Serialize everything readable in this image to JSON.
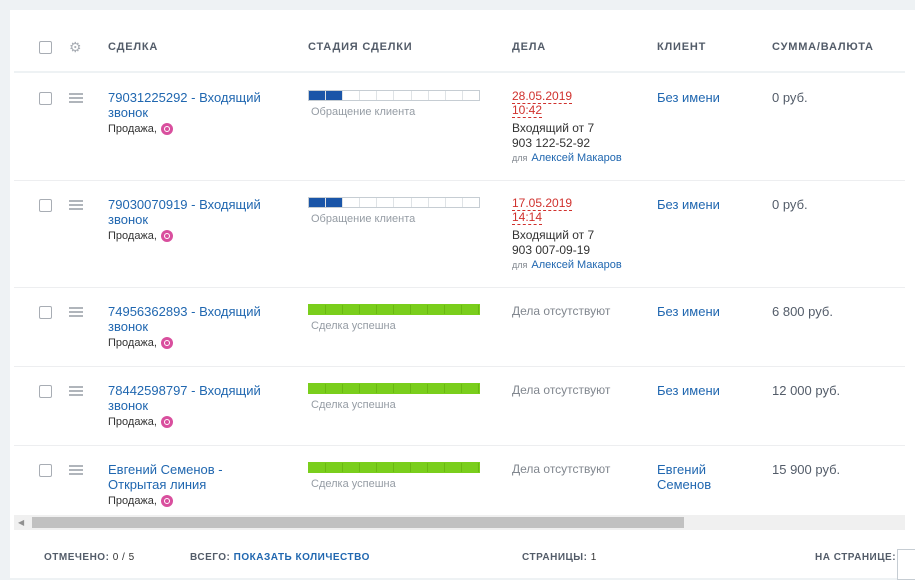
{
  "header": {
    "deal": "Сделка",
    "stage": "Стадия сделки",
    "activities": "Дела",
    "client": "Клиент",
    "sum": "Сумма/Валюта"
  },
  "rows": [
    {
      "title": "79031225292 - Входящий звонок",
      "type": "Продажа,",
      "stage_label": "Обращение клиента",
      "stage_progress": 0.2,
      "act_date": "28.05.2019",
      "act_time": "10:42",
      "act_text": "Входящий от 7 903 122-52-92",
      "act_for_label": "для",
      "act_for": "Алексей Макаров",
      "client": "Без имени",
      "sum": "0 руб."
    },
    {
      "title": "79030070919 - Входящий звонок",
      "type": "Продажа,",
      "stage_label": "Обращение клиента",
      "stage_progress": 0.2,
      "act_date": "17.05.2019",
      "act_time": "14:14",
      "act_text": "Входящий от 7 903 007-09-19",
      "act_for_label": "для",
      "act_for": "Алексей Макаров",
      "client": "Без имени",
      "sum": "0 руб."
    },
    {
      "title": "74956362893 - Входящий звонок",
      "type": "Продажа,",
      "stage_label": "Сделка успешна",
      "stage_progress": 1,
      "act_none": "Дела отсутствуют",
      "client": "Без имени",
      "sum": "6 800 руб."
    },
    {
      "title": "78442598797 - Входящий звонок",
      "type": "Продажа,",
      "stage_label": "Сделка успешна",
      "stage_progress": 1,
      "act_none": "Дела отсутствуют",
      "client": "Без имени",
      "sum": "12 000 руб."
    },
    {
      "title": "Евгений Семенов - Открытая линия",
      "type": "Продажа,",
      "stage_label": "Сделка успешна",
      "stage_progress": 1,
      "act_none": "Дела отсутствуют",
      "client": "Евгений Семенов",
      "sum": "15 900 руб."
    }
  ],
  "footer": {
    "checked_label": "Отмечено:",
    "checked_value": "0 / 5",
    "total_label": "Всего:",
    "total_link": "Показать количество",
    "pages_label": "Страницы:",
    "pages_value": "1",
    "per_page_label": "На странице:"
  },
  "colors": {
    "link": "#2067b0",
    "stage_blue": "#1a55a8",
    "stage_green": "#7ace1c",
    "overdue": "#d0312d"
  }
}
